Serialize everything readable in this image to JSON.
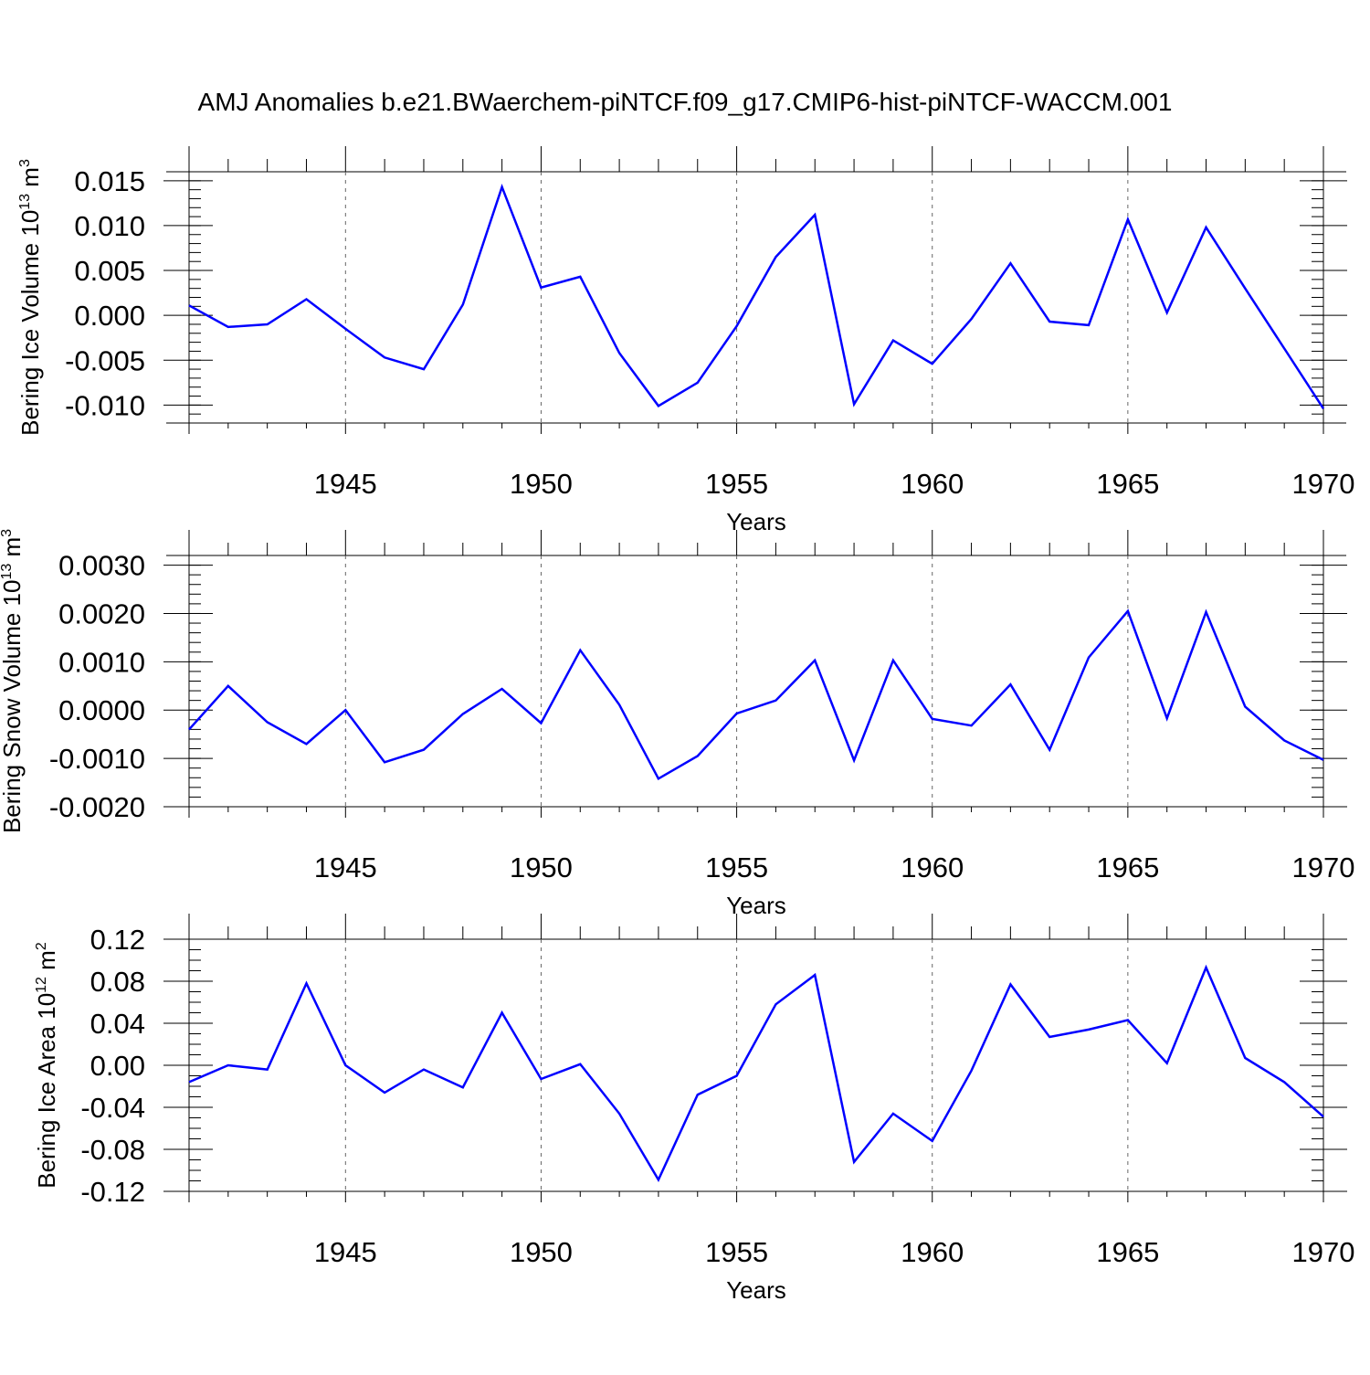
{
  "title": "AMJ Anomalies b.e21.BWaerchem-piNTCF.f09_g17.CMIP6-hist-piNTCF-WACCM.001",
  "line_color": "#0000ff",
  "chart_data": [
    {
      "type": "line",
      "ylabel_main": "Bering Ice Volume 10",
      "ylabel_exp1": "13",
      "ylabel_unit": " m",
      "ylabel_exp2": "3",
      "xlabel": "Years",
      "xlim": [
        1941,
        1970
      ],
      "ylim": [
        -0.012,
        0.016
      ],
      "xticks": [
        1945,
        1950,
        1955,
        1960,
        1965,
        1970
      ],
      "yticks": [
        -0.01,
        -0.005,
        0.0,
        0.005,
        0.01,
        0.015
      ],
      "ytick_labels": [
        "-0.010",
        "-0.005",
        "0.000",
        "0.005",
        "0.010",
        "0.015"
      ],
      "yminor_step": 0.001,
      "x": [
        1941,
        1942,
        1943,
        1944,
        1945,
        1946,
        1947,
        1948,
        1949,
        1950,
        1951,
        1952,
        1953,
        1954,
        1955,
        1956,
        1957,
        1958,
        1959,
        1960,
        1961,
        1962,
        1963,
        1964,
        1965,
        1966,
        1967,
        1968,
        1969,
        1970
      ],
      "values": [
        0.0011,
        -0.0013,
        -0.001,
        0.0018,
        -0.0015,
        -0.0047,
        -0.006,
        0.0012,
        0.0143,
        0.0031,
        0.0043,
        -0.0042,
        -0.0101,
        -0.0075,
        -0.0012,
        0.0065,
        0.0112,
        -0.0099,
        -0.0028,
        -0.0054,
        -0.0004,
        0.0058,
        -0.0007,
        -0.0011,
        0.0107,
        0.0003,
        0.0098,
        0.003,
        -0.0037,
        -0.0104
      ]
    },
    {
      "type": "line",
      "ylabel_main": "Bering Snow Volume 10",
      "ylabel_exp1": "13",
      "ylabel_unit": " m",
      "ylabel_exp2": "3",
      "xlabel": "Years",
      "xlim": [
        1941,
        1970
      ],
      "ylim": [
        -0.002,
        0.0032
      ],
      "xticks": [
        1945,
        1950,
        1955,
        1960,
        1965,
        1970
      ],
      "yticks": [
        -0.002,
        -0.001,
        0.0,
        0.001,
        0.002,
        0.003
      ],
      "ytick_labels": [
        "-0.0020",
        "-0.0010",
        "0.0000",
        "0.0010",
        "0.0020",
        "0.0030"
      ],
      "yminor_step": 0.0002,
      "x": [
        1941,
        1942,
        1943,
        1944,
        1945,
        1946,
        1947,
        1948,
        1949,
        1950,
        1951,
        1952,
        1953,
        1954,
        1955,
        1956,
        1957,
        1958,
        1959,
        1960,
        1961,
        1962,
        1963,
        1964,
        1965,
        1966,
        1967,
        1968,
        1969,
        1970
      ],
      "values": [
        -0.0004,
        0.0005,
        -0.00025,
        -0.0007,
        0.0,
        -0.00108,
        -0.00082,
        -8e-05,
        0.00044,
        -0.00027,
        0.00124,
        0.00011,
        -0.00142,
        -0.00095,
        -7e-05,
        0.0002,
        0.00103,
        -0.00104,
        0.00103,
        -0.00018,
        -0.00032,
        0.00053,
        -0.00082,
        0.00109,
        0.00205,
        -0.00017,
        0.00203,
        7e-05,
        -0.00063,
        -0.00103
      ]
    },
    {
      "type": "line",
      "ylabel_main": "Bering Ice Area 10",
      "ylabel_exp1": "12",
      "ylabel_unit": " m",
      "ylabel_exp2": "2",
      "xlabel": "Years",
      "xlim": [
        1941,
        1970
      ],
      "ylim": [
        -0.12,
        0.12
      ],
      "xticks": [
        1945,
        1950,
        1955,
        1960,
        1965,
        1970
      ],
      "yticks": [
        -0.12,
        -0.08,
        -0.04,
        0.0,
        0.04,
        0.08,
        0.12
      ],
      "ytick_labels": [
        "-0.12",
        "-0.08",
        "-0.04",
        "0.00",
        "0.04",
        "0.08",
        "0.12"
      ],
      "yminor_step": 0.01,
      "x": [
        1941,
        1942,
        1943,
        1944,
        1945,
        1946,
        1947,
        1948,
        1949,
        1950,
        1951,
        1952,
        1953,
        1954,
        1955,
        1956,
        1957,
        1958,
        1959,
        1960,
        1961,
        1962,
        1963,
        1964,
        1965,
        1966,
        1967,
        1968,
        1969,
        1970
      ],
      "values": [
        -0.016,
        0.0,
        -0.004,
        0.078,
        0.0,
        -0.026,
        -0.004,
        -0.021,
        0.05,
        -0.013,
        0.001,
        -0.046,
        -0.109,
        -0.028,
        -0.01,
        0.058,
        0.086,
        -0.092,
        -0.046,
        -0.072,
        -0.005,
        0.077,
        0.027,
        0.034,
        0.043,
        0.002,
        0.093,
        0.007,
        -0.016,
        -0.049
      ]
    }
  ]
}
